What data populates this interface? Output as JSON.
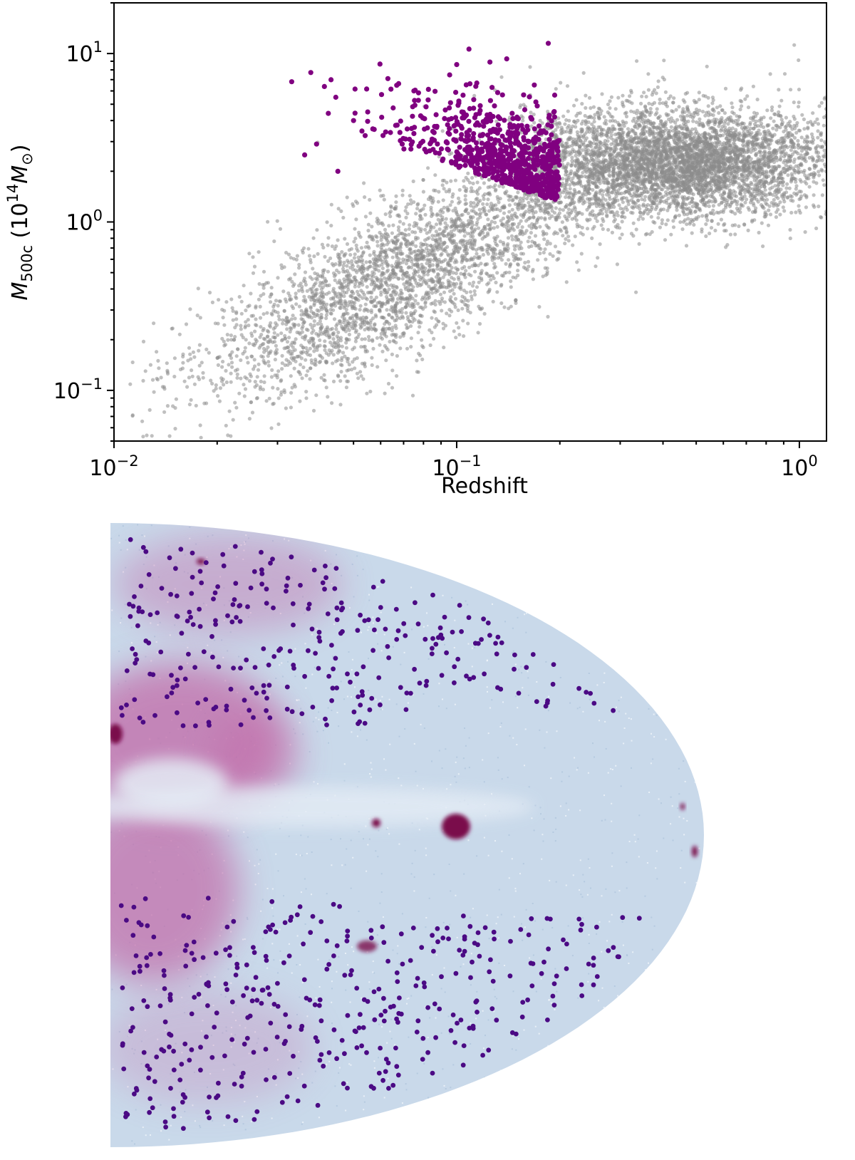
{
  "chart_data": [
    {
      "type": "scatter",
      "xlabel": "Redshift",
      "ylabel": {
        "main": "M",
        "subscript": "500c",
        "unit_prefix": " (10",
        "unit_exponent": "14",
        "unit_symbol": "M",
        "unit_symbol_subscript": "⊙",
        "unit_suffix": ")"
      },
      "xscale": "log",
      "yscale": "log",
      "xlim": [
        0.01,
        1.2
      ],
      "ylim": [
        0.05,
        20
      ],
      "xticks": [
        {
          "value": 0.01,
          "base": "10",
          "exp": "−2"
        },
        {
          "value": 0.1,
          "base": "10",
          "exp": "−1"
        },
        {
          "value": 1,
          "base": "10",
          "exp": "0"
        }
      ],
      "yticks": [
        {
          "value": 0.1,
          "base": "10",
          "exp": "−1"
        },
        {
          "value": 1,
          "base": "10",
          "exp": "0"
        },
        {
          "value": 10,
          "base": "10",
          "exp": "1"
        }
      ],
      "grid": false,
      "series": [
        {
          "color": "#8c8c8c",
          "opacity": 0.55,
          "distribution": "full catalogue, about 12000 points; densest near redshift 0.3-0.8 and mass 1-5",
          "approx_points": 12000,
          "x_range": [
            0.011,
            1.2
          ],
          "y_range": [
            0.05,
            17
          ]
        },
        {
          "color": "#800080",
          "opacity": 1.0,
          "distribution": "selected clusters, about 800 points, redshift up to 0.2 and mass above about 1.3",
          "approx_points": 800,
          "x_range": [
            0.033,
            0.2
          ],
          "y_range": [
            1.3,
            11.5
          ],
          "sample_points": [
            [
              0.033,
              6.8
            ],
            [
              0.036,
              2.5
            ],
            [
              0.039,
              2.9
            ],
            [
              0.045,
              2.0
            ],
            [
              0.05,
              4.0
            ],
            [
              0.055,
              4.5
            ],
            [
              0.063,
              7.1
            ],
            [
              0.075,
              6.0
            ],
            [
              0.1,
              8.6
            ],
            [
              0.125,
              8.9
            ],
            [
              0.14,
              9.3
            ],
            [
              0.185,
              11.5
            ]
          ]
        }
      ]
    },
    {
      "type": "scatter",
      "projection": "half Mollweide sky map",
      "background_colors": {
        "sky": "#c9d9ea",
        "band": "#e4ecf5",
        "emission": "#c26aa8",
        "bright_source": "#7a0a4c"
      },
      "marker_color": "#4b0a84",
      "approx_points": 800,
      "regions": "two bands of cluster positions, one above and one below the central plane; the plane itself is empty",
      "title": "",
      "xlabel": "",
      "ylabel": ""
    }
  ]
}
